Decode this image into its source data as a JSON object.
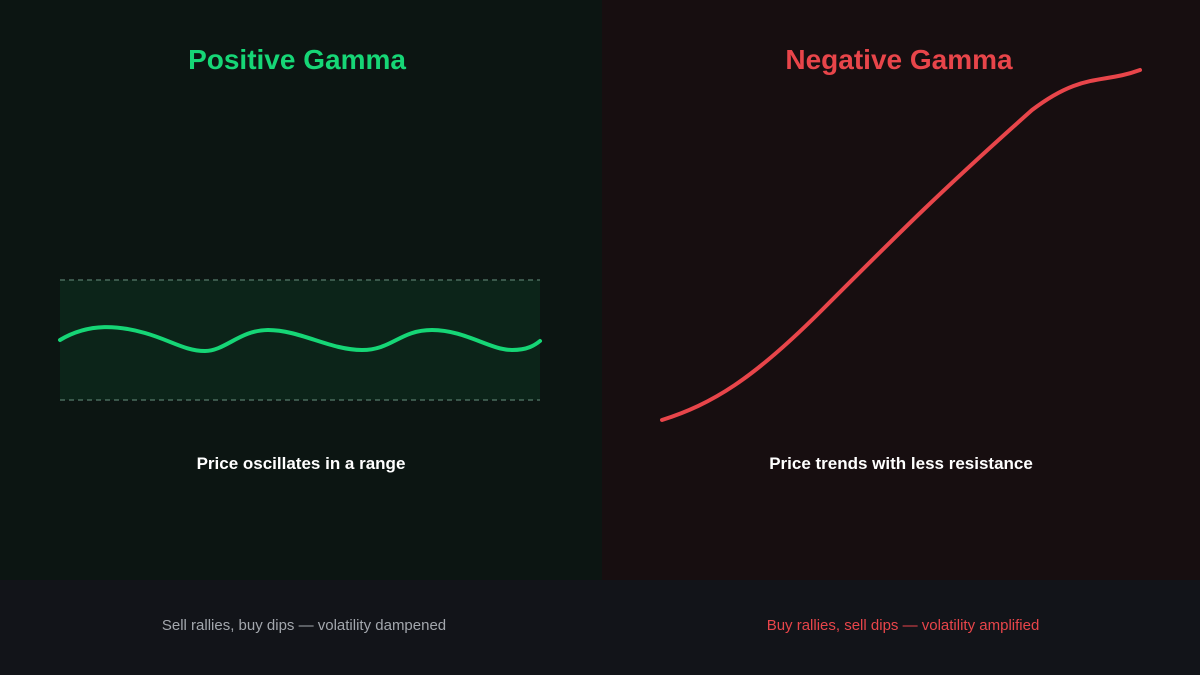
{
  "positive_gamma": {
    "title": "Positive Gamma",
    "caption": "Price oscillates in a range",
    "footer_note": "Sell rallies, buy dips — volatility dampened",
    "color": "#16d676",
    "range_fill": "#0c2419",
    "range_border": "#4a6b5c"
  },
  "negative_gamma": {
    "title": "Negative Gamma",
    "caption": "Price trends with less resistance",
    "footer_note": "Buy rallies, sell dips — volatility amplified",
    "color": "#e8454a"
  },
  "colors": {
    "left_panel_bg": "#0c1512",
    "right_panel_bg": "#170e10",
    "footer_bg": "#121419",
    "caption_text": "#ffffff",
    "footer_left_text": "#a3a7ad"
  }
}
